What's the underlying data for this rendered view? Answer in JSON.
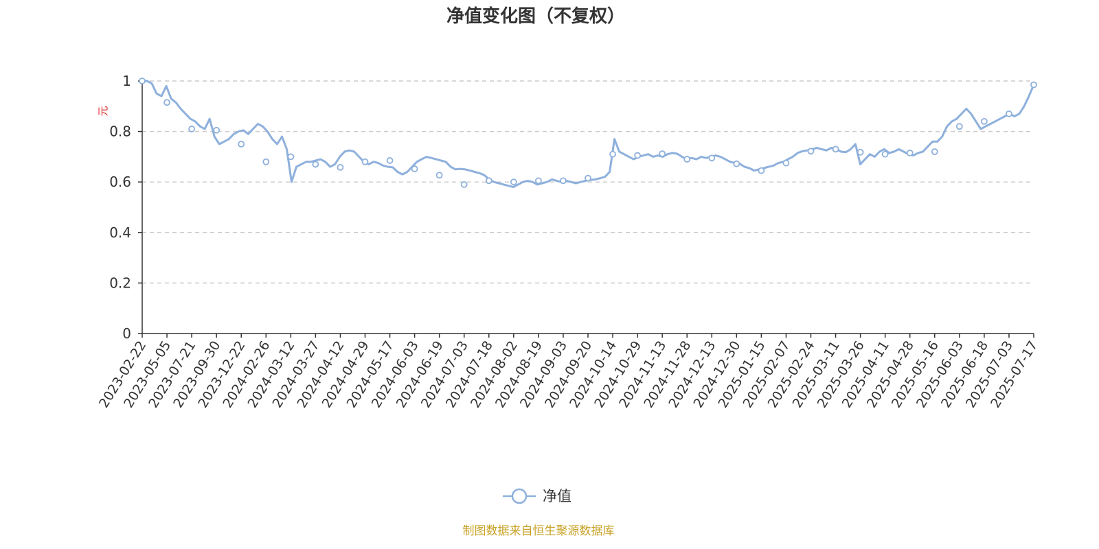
{
  "colors": {
    "series": "#8eb0dc",
    "unit_label": "#e02020",
    "source": "#c9a227",
    "grid": "#cccccc",
    "axis": "#333333",
    "text": "#333333"
  },
  "chart_data": {
    "type": "line",
    "title": "净值变化图（不复权）",
    "ylabel": "元",
    "ylim": [
      0,
      1
    ],
    "yticks": [
      "0",
      "0.2",
      "0.4",
      "0.6",
      "0.8",
      "1"
    ],
    "grid": true,
    "legend_position": "bottom-center",
    "x_tick_labels": [
      "2023-02-22",
      "2023-05-05",
      "2023-07-21",
      "2023-09-30",
      "2023-12-22",
      "2024-02-26",
      "2024-03-12",
      "2024-03-27",
      "2024-04-12",
      "2024-04-29",
      "2024-05-17",
      "2024-06-03",
      "2024-06-19",
      "2024-07-03",
      "2024-07-18",
      "2024-08-02",
      "2024-08-19",
      "2024-09-03",
      "2024-09-20",
      "2024-10-14",
      "2024-10-29",
      "2024-11-13",
      "2024-11-28",
      "2024-12-13",
      "2024-12-30",
      "2025-01-15",
      "2025-02-07",
      "2025-02-24",
      "2025-03-11",
      "2025-03-26",
      "2025-04-11",
      "2025-04-28",
      "2025-05-16",
      "2025-06-03",
      "2025-06-18",
      "2025-07-03",
      "2025-07-17"
    ],
    "series": [
      {
        "name": "净值",
        "values": [
          1.0,
          0.915,
          0.81,
          0.805,
          0.75,
          0.68,
          0.7,
          0.67,
          0.658,
          0.68,
          0.685,
          0.652,
          0.627,
          0.59,
          0.605,
          0.6,
          0.605,
          0.605,
          0.615,
          0.71,
          0.705,
          0.712,
          0.69,
          0.695,
          0.672,
          0.645,
          0.675,
          0.722,
          0.73,
          0.718,
          0.71,
          0.715,
          0.72,
          0.82,
          0.84,
          0.87,
          0.985
        ],
        "path": [
          1.0,
          1.0,
          0.99,
          0.95,
          0.94,
          0.98,
          0.93,
          0.915,
          0.89,
          0.87,
          0.85,
          0.84,
          0.82,
          0.81,
          0.85,
          0.78,
          0.75,
          0.76,
          0.77,
          0.79,
          0.8,
          0.805,
          0.79,
          0.81,
          0.83,
          0.82,
          0.8,
          0.77,
          0.75,
          0.78,
          0.73,
          0.6,
          0.66,
          0.67,
          0.68,
          0.68,
          0.685,
          0.69,
          0.68,
          0.66,
          0.67,
          0.7,
          0.72,
          0.725,
          0.72,
          0.7,
          0.68,
          0.67,
          0.68,
          0.675,
          0.665,
          0.66,
          0.658,
          0.64,
          0.63,
          0.64,
          0.66,
          0.68,
          0.69,
          0.7,
          0.695,
          0.69,
          0.685,
          0.68,
          0.66,
          0.65,
          0.652,
          0.65,
          0.645,
          0.64,
          0.635,
          0.627,
          0.61,
          0.6,
          0.595,
          0.59,
          0.585,
          0.58,
          0.59,
          0.6,
          0.605,
          0.6,
          0.59,
          0.595,
          0.6,
          0.61,
          0.605,
          0.6,
          0.605,
          0.6,
          0.595,
          0.6,
          0.605,
          0.608,
          0.61,
          0.615,
          0.62,
          0.64,
          0.77,
          0.72,
          0.71,
          0.7,
          0.69,
          0.7,
          0.705,
          0.71,
          0.7,
          0.705,
          0.7,
          0.71,
          0.715,
          0.712,
          0.7,
          0.69,
          0.695,
          0.69,
          0.7,
          0.695,
          0.7,
          0.705,
          0.7,
          0.69,
          0.68,
          0.675,
          0.672,
          0.66,
          0.655,
          0.645,
          0.65,
          0.655,
          0.66,
          0.665,
          0.675,
          0.68,
          0.69,
          0.7,
          0.715,
          0.722,
          0.725,
          0.73,
          0.735,
          0.73,
          0.725,
          0.735,
          0.73,
          0.72,
          0.718,
          0.73,
          0.75,
          0.67,
          0.69,
          0.71,
          0.7,
          0.72,
          0.73,
          0.715,
          0.72,
          0.73,
          0.72,
          0.71,
          0.705,
          0.715,
          0.72,
          0.74,
          0.76,
          0.76,
          0.78,
          0.82,
          0.84,
          0.85,
          0.87,
          0.89,
          0.87,
          0.84,
          0.81,
          0.82,
          0.83,
          0.84,
          0.85,
          0.86,
          0.87,
          0.86,
          0.87,
          0.9,
          0.94,
          0.985
        ]
      }
    ]
  },
  "footer": {
    "source": "制图数据来自恒生聚源数据库"
  }
}
